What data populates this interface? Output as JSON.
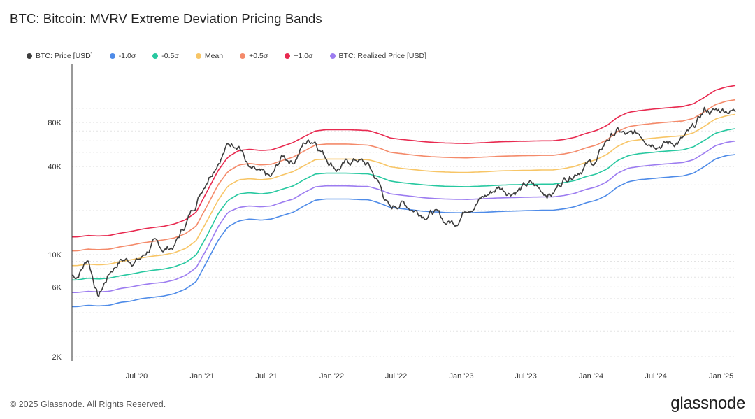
{
  "title": "BTC: Bitcoin: MVRV Extreme Deviation Pricing Bands",
  "footer": {
    "copyright": "© 2025 Glassnode. All Rights Reserved.",
    "brand": "glassnode"
  },
  "chart_data": {
    "type": "line",
    "title": "BTC: Bitcoin: MVRV Extreme Deviation Pricing Bands",
    "xlabel": "",
    "ylabel": "",
    "yscale": "log",
    "ylim": [
      2000,
      200000
    ],
    "x_ticks": [
      "Jul '20",
      "Jan '21",
      "Jul '21",
      "Jan '22",
      "Jul '22",
      "Jan '23",
      "Jul '23",
      "Jan '24",
      "Jul '24",
      "Jan '25"
    ],
    "y_ticks": [
      {
        "value": 2000,
        "label": "2K"
      },
      {
        "value": 6000,
        "label": "6K"
      },
      {
        "value": 10000,
        "label": "10K"
      },
      {
        "value": 40000,
        "label": "40K"
      },
      {
        "value": 80000,
        "label": "80K"
      }
    ],
    "x": [
      "2020-01",
      "2020-02",
      "2020-03",
      "2020-04",
      "2020-05",
      "2020-06",
      "2020-07",
      "2020-08",
      "2020-09",
      "2020-10",
      "2020-11",
      "2020-12",
      "2021-01",
      "2021-02",
      "2021-03",
      "2021-04",
      "2021-05",
      "2021-06",
      "2021-07",
      "2021-08",
      "2021-09",
      "2021-10",
      "2021-11",
      "2021-12",
      "2022-01",
      "2022-02",
      "2022-03",
      "2022-04",
      "2022-05",
      "2022-06",
      "2022-07",
      "2022-08",
      "2022-09",
      "2022-10",
      "2022-11",
      "2022-12",
      "2023-01",
      "2023-02",
      "2023-03",
      "2023-04",
      "2023-05",
      "2023-06",
      "2023-07",
      "2023-08",
      "2023-09",
      "2023-10",
      "2023-11",
      "2023-12",
      "2024-01",
      "2024-02",
      "2024-03",
      "2024-04",
      "2024-05",
      "2024-06",
      "2024-07",
      "2024-08",
      "2024-09",
      "2024-10",
      "2024-11",
      "2024-12",
      "2025-01",
      "2025-02"
    ],
    "series": [
      {
        "name": "BTC: Price [USD]",
        "color": "#3d3d3d",
        "values": [
          7200,
          9500,
          5200,
          7500,
          9300,
          9200,
          9500,
          11800,
          10700,
          11500,
          16000,
          23000,
          34000,
          46000,
          57000,
          60000,
          38000,
          34000,
          32000,
          46000,
          44000,
          58000,
          62000,
          48000,
          40000,
          42000,
          45000,
          40000,
          30000,
          20000,
          23000,
          21000,
          19500,
          20000,
          16500,
          16800,
          21500,
          24000,
          25500,
          29000,
          27500,
          28500,
          30000,
          27000,
          26500,
          33000,
          37500,
          42000,
          43000,
          61000,
          70000,
          63000,
          66000,
          62000,
          60000,
          58000,
          62000,
          70000,
          96000,
          95000,
          100000,
          96000
        ]
      },
      {
        "name": "-1.0σ",
        "color": "#4e8be8",
        "values": [
          4400,
          4500,
          4450,
          4500,
          4700,
          4800,
          5000,
          5100,
          5200,
          5400,
          5800,
          6500,
          9000,
          12500,
          15500,
          17000,
          17500,
          17200,
          17500,
          18500,
          19500,
          21500,
          23500,
          24000,
          24000,
          24000,
          23800,
          23700,
          22500,
          21000,
          20600,
          20200,
          19800,
          19600,
          19400,
          19300,
          19300,
          19400,
          19500,
          19700,
          19800,
          19900,
          20000,
          20100,
          20100,
          20500,
          21200,
          22500,
          23500,
          25500,
          29000,
          31500,
          32500,
          33000,
          33500,
          34000,
          34500,
          36000,
          40000,
          45000,
          47500,
          48500
        ]
      },
      {
        "name": "BTC: Realized Price [USD]",
        "color": "#9c7cf0",
        "values": [
          5500,
          5600,
          5550,
          5600,
          5850,
          6000,
          6200,
          6350,
          6450,
          6700,
          7200,
          8100,
          11000,
          15500,
          19500,
          21000,
          21500,
          21200,
          21500,
          22800,
          24000,
          26500,
          29000,
          29500,
          29500,
          29500,
          29300,
          29200,
          27800,
          26000,
          25500,
          25000,
          24500,
          24200,
          24000,
          23900,
          23800,
          24000,
          24200,
          24400,
          24500,
          24600,
          24700,
          24800,
          24800,
          25300,
          26200,
          27800,
          29000,
          31500,
          36000,
          39000,
          40000,
          40800,
          41400,
          42000,
          42600,
          44500,
          49500,
          55500,
          58500,
          60000
        ]
      },
      {
        "name": "-0.5σ",
        "color": "#27c8a0",
        "values": [
          6700,
          6900,
          6800,
          6900,
          7150,
          7350,
          7600,
          7800,
          7950,
          8250,
          8800,
          9900,
          13500,
          19000,
          23500,
          26000,
          26500,
          26000,
          26500,
          28000,
          29500,
          32500,
          35500,
          36000,
          36000,
          36000,
          35800,
          35600,
          34000,
          31800,
          31100,
          30500,
          30000,
          29600,
          29300,
          29200,
          29100,
          29300,
          29500,
          29800,
          30000,
          30100,
          30200,
          30300,
          30300,
          31000,
          32000,
          34000,
          35500,
          38500,
          44000,
          47500,
          49000,
          49800,
          50600,
          51300,
          52000,
          54500,
          60500,
          67500,
          71000,
          73000
        ]
      },
      {
        "name": "Mean",
        "color": "#f7c566",
        "values": [
          8400,
          8600,
          8500,
          8600,
          8950,
          9200,
          9500,
          9750,
          9950,
          10300,
          11000,
          12400,
          17000,
          23500,
          29500,
          32500,
          33000,
          32500,
          33000,
          35000,
          37000,
          40500,
          44500,
          45000,
          45000,
          45000,
          44800,
          44500,
          42500,
          39800,
          38900,
          38200,
          37500,
          37000,
          36700,
          36500,
          36400,
          36700,
          36900,
          37300,
          37500,
          37600,
          37700,
          37900,
          37900,
          38700,
          40000,
          42500,
          44500,
          48500,
          55000,
          59500,
          61000,
          62300,
          63300,
          64200,
          65000,
          68000,
          75500,
          84500,
          89000,
          91500
        ]
      },
      {
        "name": "+0.5σ",
        "color": "#f48a6a",
        "values": [
          10600,
          10900,
          10800,
          10900,
          11300,
          11600,
          12000,
          12300,
          12600,
          13000,
          13900,
          15600,
          21500,
          30000,
          37000,
          41000,
          42000,
          41000,
          41500,
          44000,
          46500,
          51000,
          56000,
          57000,
          57000,
          57000,
          56500,
          56000,
          53500,
          50000,
          49000,
          48000,
          47200,
          46600,
          46200,
          46000,
          45800,
          46200,
          46500,
          47000,
          47200,
          47400,
          47500,
          47700,
          47700,
          48700,
          50400,
          53500,
          56000,
          61000,
          69500,
          75000,
          77000,
          78500,
          79800,
          80900,
          82000,
          85500,
          95000,
          106000,
          112000,
          115000
        ]
      },
      {
        "name": "+1.0σ",
        "color": "#e8294f",
        "values": [
          13200,
          13500,
          13400,
          13500,
          14000,
          14400,
          14900,
          15300,
          15600,
          16200,
          17300,
          19400,
          27000,
          37500,
          46500,
          51500,
          52500,
          51500,
          52000,
          55000,
          58500,
          64000,
          70000,
          71500,
          71500,
          71500,
          71000,
          70500,
          67000,
          62700,
          61400,
          60300,
          59200,
          58500,
          58000,
          57700,
          57500,
          58000,
          58400,
          59000,
          59300,
          59500,
          59700,
          60000,
          60000,
          61200,
          63300,
          67200,
          70500,
          76500,
          87000,
          94000,
          96500,
          98500,
          100000,
          101500,
          103000,
          107500,
          119000,
          133000,
          140000,
          144000
        ]
      }
    ]
  }
}
